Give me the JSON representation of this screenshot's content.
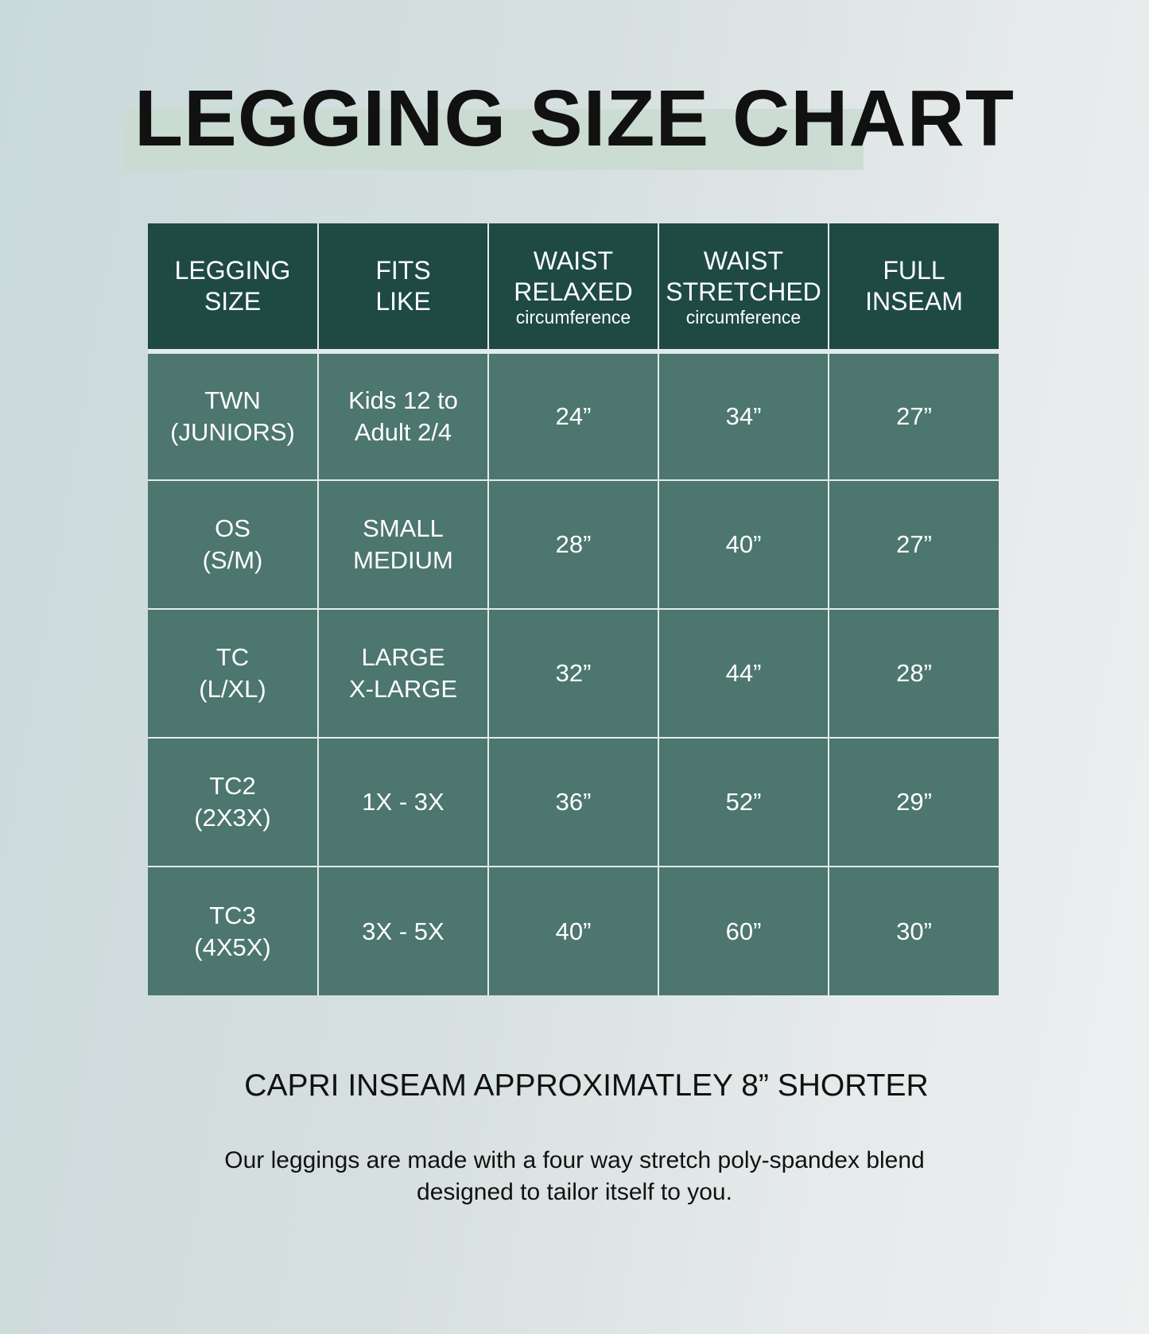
{
  "title": "LEGGING SIZE CHART",
  "table": {
    "headers": [
      {
        "label": "LEGGING",
        "label2": "SIZE",
        "sub": ""
      },
      {
        "label": "FITS",
        "label2": "LIKE",
        "sub": ""
      },
      {
        "label": "WAIST",
        "label2": "RELAXED",
        "sub": "circumference"
      },
      {
        "label": "WAIST",
        "label2": "STRETCHED",
        "sub": "circumference"
      },
      {
        "label": "FULL",
        "label2": "INSEAM",
        "sub": ""
      }
    ],
    "rows": [
      [
        [
          "TWN",
          "(JUNIORS)"
        ],
        [
          "Kids 12 to",
          "Adult 2/4"
        ],
        [
          "24”"
        ],
        [
          "34”"
        ],
        [
          "27”"
        ]
      ],
      [
        [
          "OS",
          "(S/M)"
        ],
        [
          "SMALL",
          "MEDIUM"
        ],
        [
          "28”"
        ],
        [
          "40”"
        ],
        [
          "27”"
        ]
      ],
      [
        [
          "TC",
          "(L/XL)"
        ],
        [
          "LARGE",
          "X-LARGE"
        ],
        [
          "32”"
        ],
        [
          "44”"
        ],
        [
          "28”"
        ]
      ],
      [
        [
          "TC2",
          "(2X3X)"
        ],
        [
          "1X - 3X"
        ],
        [
          "36”"
        ],
        [
          "52”"
        ],
        [
          "29”"
        ]
      ],
      [
        [
          "TC3",
          "(4X5X)"
        ],
        [
          "3X - 5X"
        ],
        [
          "40”"
        ],
        [
          "60”"
        ],
        [
          "30”"
        ]
      ]
    ]
  },
  "capri_note": "CAPRI INSEAM APPROXIMATLEY 8” SHORTER",
  "description": {
    "line1": "Our leggings are made with a four way stretch poly-spandex blend",
    "line2": "designed to tailor itself to you."
  },
  "colors": {
    "header_bg": "#1e4a43",
    "cell_bg": "#4c766e",
    "highlight": "#c9dbd0"
  }
}
